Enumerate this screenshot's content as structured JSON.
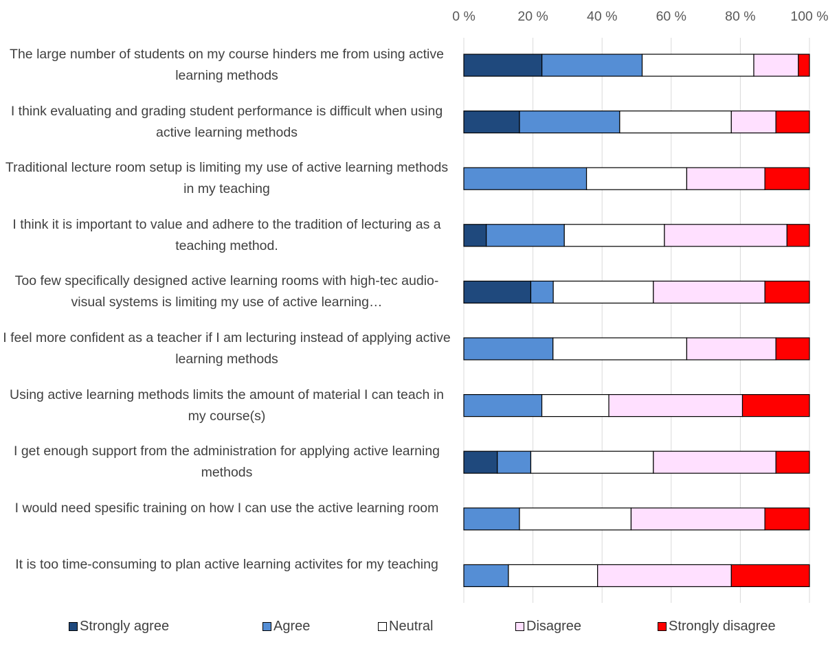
{
  "chart_data": {
    "type": "bar",
    "orientation": "horizontal",
    "stacked": "percent",
    "title": "",
    "xlabel": "",
    "ylabel": "",
    "xlim": [
      0,
      100
    ],
    "x_ticks": [
      "0 %",
      "20 %",
      "40 %",
      "60 %",
      "80 %",
      "100 %"
    ],
    "grid": true,
    "legend_position": "bottom",
    "categories": [
      "The large number of students on my course hinders me from using active learning methods",
      "I think evaluating and grading student performance is difficult when using active learning methods",
      "Traditional lecture room setup is limiting my use of active learning methods in my teaching",
      "I think it is important to value and adhere to the tradition of lecturing as a teaching method.",
      "Too few specifically designed active learning rooms with high-tec audio-visual systems is limiting my use of active learning…",
      "I feel more confident as a teacher if I am lecturing instead of applying active learning methods",
      "Using active learning methods limits the amount of material I can teach in my course(s)",
      "I get enough support from the administration for applying active learning methods",
      "I would need spesific training on how I can use the active learning room",
      "It is too time-consuming to plan active learning activites for my teaching"
    ],
    "series": [
      {
        "name": "Strongly agree",
        "color": "#1f497d",
        "values": [
          22.6,
          16.1,
          0,
          6.5,
          19.4,
          0,
          0,
          9.7,
          0,
          0
        ]
      },
      {
        "name": "Agree",
        "color": "#558ed5",
        "values": [
          29.0,
          29.0,
          35.5,
          22.6,
          6.5,
          25.8,
          22.6,
          9.7,
          16.1,
          12.9
        ]
      },
      {
        "name": "Neutral",
        "color": "#ffffff",
        "values": [
          32.3,
          32.3,
          29.0,
          29.0,
          29.0,
          38.7,
          19.4,
          35.5,
          32.3,
          25.8
        ]
      },
      {
        "name": "Disagree",
        "color": "#ffe0ff",
        "values": [
          12.9,
          12.9,
          22.6,
          35.5,
          32.3,
          25.8,
          38.7,
          35.5,
          38.7,
          38.7
        ]
      },
      {
        "name": "Strongly disagree",
        "color": "#ff0000",
        "values": [
          3.2,
          9.7,
          12.9,
          6.5,
          12.9,
          9.7,
          19.4,
          9.7,
          12.9,
          22.6
        ]
      }
    ]
  }
}
